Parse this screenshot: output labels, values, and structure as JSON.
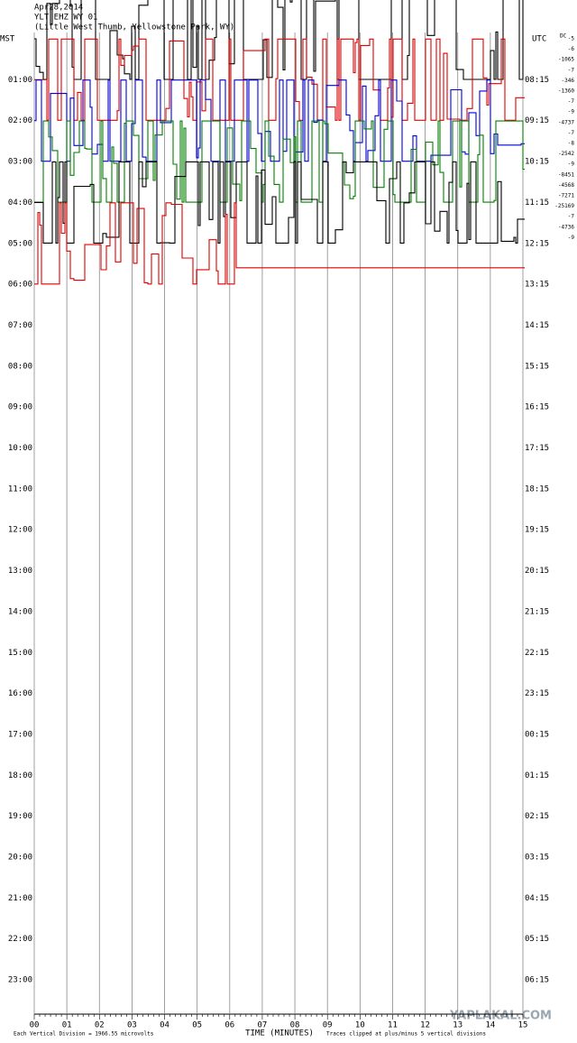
{
  "chart_data": {
    "type": "seismogram",
    "title": [
      "Apr28,2014",
      "YLT EHZ WY 01",
      "(Little West Thumb, Yellowstone Park, WY)"
    ],
    "left_zone": "MST",
    "right_zone": "UTC",
    "categories": [
      null,
      "01:00",
      "02:00",
      "03:00",
      "04:00",
      "05:00",
      "06:00",
      "07:00",
      "08:00",
      "09:00",
      "10:00",
      "11:00",
      "12:00",
      "13:00",
      "14:00",
      "15:00",
      "16:00",
      "17:00",
      "18:00",
      "19:00",
      "20:00",
      "21:00",
      "22:00",
      "23:00"
    ],
    "right_labels": [
      null,
      "08:15",
      "09:15",
      "10:15",
      "11:15",
      "12:15",
      "13:15",
      "14:15",
      "15:15",
      "16:15",
      "17:15",
      "18:15",
      "19:15",
      "20:15",
      "21:15",
      "22:15",
      "23:15",
      "00:15",
      "01:15",
      "02:15",
      "03:15",
      "04:15",
      "05:15",
      "06:15"
    ],
    "dc_label": "DC",
    "dc_offsets": [
      -5,
      -6,
      -1065,
      -7,
      -346,
      -1360,
      -7,
      -9,
      -4737,
      -7,
      -8,
      -2542,
      -9,
      -8451,
      -4568,
      -7271,
      -25169,
      -7,
      -4736,
      -9
    ],
    "xlim": [
      0,
      15
    ],
    "xticks": [
      {
        "value": 0,
        "label": "00"
      },
      {
        "value": 1,
        "label": "01"
      },
      {
        "value": 2,
        "label": "02"
      },
      {
        "value": 3,
        "label": "03"
      },
      {
        "value": 4,
        "label": "04"
      },
      {
        "value": 5,
        "label": "05"
      },
      {
        "value": 6,
        "label": "06"
      },
      {
        "value": 7,
        "label": "07"
      },
      {
        "value": 8,
        "label": "08"
      },
      {
        "value": 9,
        "label": "09"
      },
      {
        "value": 10,
        "label": "10"
      },
      {
        "value": 11,
        "label": "11"
      },
      {
        "value": 12,
        "label": "12"
      },
      {
        "value": 13,
        "label": "13"
      },
      {
        "value": 14,
        "label": "14"
      },
      {
        "value": 15,
        "label": "15"
      }
    ],
    "xlabel": "TIME (MINUTES)",
    "footer_left": "Each Vertical Division = 1966.55 microvolts",
    "footer_right": "Traces clipped at plus/minus 5 vertical divisions",
    "watermark": "YAPLAKAL.COM",
    "trace_colors": [
      "#000000",
      "#e00000",
      "#0000e0",
      "#008000"
    ]
  }
}
